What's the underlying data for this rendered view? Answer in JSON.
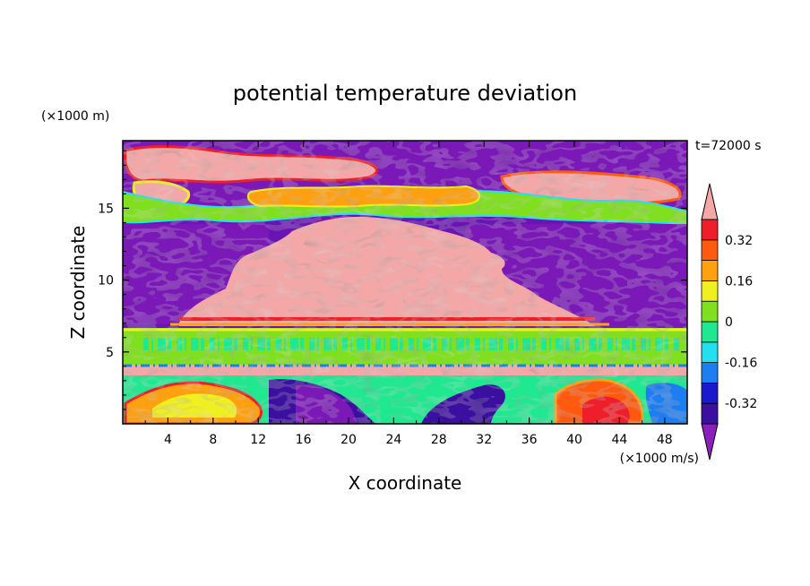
{
  "chart_data": {
    "type": "heatmap",
    "title": "potential temperature deviation",
    "xlabel": "X coordinate",
    "ylabel": "Z coordinate",
    "x_unit": "(×1000 m/s)",
    "y_unit": "(×1000 m)",
    "time_label": "t=72000 s",
    "xlim": [
      0,
      50
    ],
    "ylim": [
      0,
      19.7
    ],
    "x_ticks": [
      4,
      8,
      12,
      16,
      20,
      24,
      28,
      32,
      36,
      40,
      44,
      48
    ],
    "y_ticks": [
      5,
      10,
      15
    ],
    "colorbar": {
      "levels": [
        -0.4,
        -0.32,
        -0.24,
        -0.16,
        -0.08,
        0,
        0.08,
        0.16,
        0.24,
        0.32,
        0.4
      ],
      "colors": [
        "#8c1fbe",
        "#3b0fa0",
        "#1a1acc",
        "#1e7df0",
        "#22e0f0",
        "#20e890",
        "#80e020",
        "#f0f020",
        "#ffa010",
        "#ff5a10",
        "#ee1e2a",
        "#f4a7a7"
      ],
      "tick_labels": [
        "0.32",
        "0.16",
        "0",
        "-0.16",
        "-0.32"
      ],
      "extend": "both"
    },
    "bands": [
      {
        "z_range": [
          15,
          19.7
        ],
        "dominant": "mixed positive / negative",
        "notes": "pink warm patches with purple cold pools"
      },
      {
        "z_range": [
          7.3,
          15
        ],
        "dominant": "pink (> 0.4)",
        "x_range": [
          8,
          35
        ],
        "flanks": "purple (< -0.4)"
      },
      {
        "z_range": [
          4.1,
          7.3
        ],
        "dominant": "green (~0 to 0.08)"
      },
      {
        "z_range": [
          3.6,
          4.1
        ],
        "dominant": "pink (> 0.4)"
      },
      {
        "z_range": [
          0,
          3.6
        ],
        "dominant": "mixed, orange/red warm cells near x=42-46"
      }
    ]
  }
}
